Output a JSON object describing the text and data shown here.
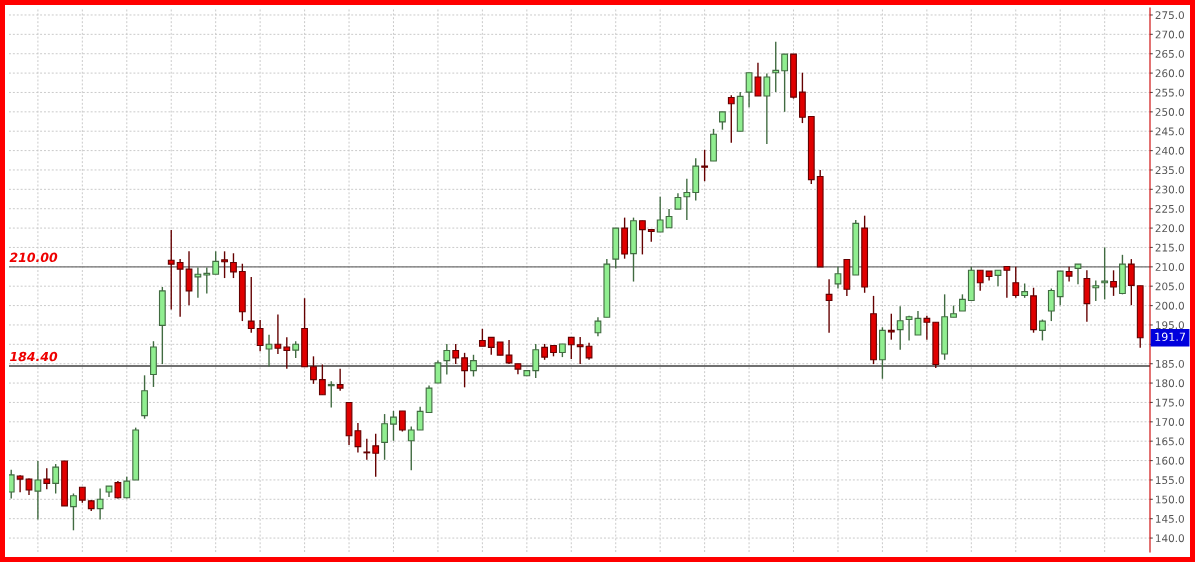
{
  "chart_data": {
    "type": "candlestick",
    "categories": [
      null,
      null,
      null,
      null,
      null,
      null,
      null,
      null,
      null,
      null,
      null,
      null,
      null,
      null,
      null,
      null,
      null,
      null,
      null,
      null,
      null,
      null,
      null,
      null,
      null,
      null,
      null,
      null,
      null,
      null,
      null,
      null,
      null,
      null,
      null,
      null,
      null,
      null,
      null,
      null,
      null,
      null,
      null,
      null,
      null,
      null,
      null,
      null,
      null,
      null,
      null,
      null,
      null,
      null,
      null,
      null,
      null,
      null,
      null,
      null,
      null,
      null,
      null,
      null,
      null,
      null,
      null,
      null,
      null,
      null,
      null,
      null,
      null,
      null,
      null,
      null,
      null,
      null,
      null,
      null,
      null,
      null,
      null,
      null,
      null,
      null,
      null,
      null,
      null,
      null,
      null,
      null,
      null,
      null,
      null,
      null,
      null,
      null,
      null,
      null,
      null,
      null,
      null,
      null,
      null,
      null,
      null,
      null,
      null,
      null,
      null,
      null,
      null,
      null,
      null,
      null,
      null,
      null,
      null,
      null,
      null,
      null,
      null,
      null,
      null,
      null,
      null,
      null
    ],
    "ohlc": [
      [
        151.9,
        157.6,
        150.2,
        156.3
      ],
      [
        156.0,
        156.2,
        151.8,
        155.2
      ],
      [
        155.2,
        155.4,
        151.1,
        152.4
      ],
      [
        152.1,
        159.9,
        144.8,
        155.0
      ],
      [
        155.2,
        158.0,
        152.6,
        154.1
      ],
      [
        154.1,
        159.1,
        151.5,
        158.3
      ],
      [
        159.9,
        159.9,
        148.3,
        148.3
      ],
      [
        148.1,
        151.5,
        142.0,
        150.9
      ],
      [
        153.1,
        153.2,
        149.1,
        149.8
      ],
      [
        149.6,
        149.8,
        147.0,
        147.6
      ],
      [
        147.6,
        152.8,
        144.8,
        150.0
      ],
      [
        151.9,
        153.4,
        150.6,
        153.4
      ],
      [
        154.3,
        154.7,
        150.2,
        150.4
      ],
      [
        150.4,
        155.8,
        150.2,
        154.7
      ],
      [
        155.0,
        168.5,
        155.0,
        167.9
      ],
      [
        171.6,
        182.0,
        170.8,
        178.0
      ],
      [
        182.2,
        190.8,
        179.0,
        189.3
      ],
      [
        194.9,
        204.8,
        184.9,
        203.8
      ],
      [
        211.7,
        219.5,
        199.0,
        210.7
      ],
      [
        211.1,
        212.0,
        197.1,
        209.4
      ],
      [
        209.4,
        214.0,
        200.1,
        203.8
      ],
      [
        207.4,
        209.8,
        202.0,
        208.1
      ],
      [
        207.9,
        209.8,
        203.1,
        208.3
      ],
      [
        208.1,
        214.0,
        208.1,
        211.4
      ],
      [
        211.8,
        214.0,
        207.1,
        211.3
      ],
      [
        211.1,
        213.5,
        207.1,
        208.7
      ],
      [
        208.8,
        210.8,
        196.0,
        198.4
      ],
      [
        196.0,
        207.4,
        193.0,
        194.1
      ],
      [
        194.1,
        196.3,
        188.2,
        189.7
      ],
      [
        188.8,
        192.5,
        184.3,
        190.0
      ],
      [
        190.0,
        197.7,
        187.5,
        189.0
      ],
      [
        189.3,
        191.8,
        183.7,
        188.4
      ],
      [
        188.5,
        190.8,
        186.5,
        190.0
      ],
      [
        194.1,
        201.9,
        184.2,
        184.2
      ],
      [
        184.2,
        186.9,
        179.8,
        180.9
      ],
      [
        180.9,
        184.8,
        177.0,
        177.0
      ],
      [
        179.3,
        180.5,
        173.7,
        179.6
      ],
      [
        179.6,
        183.7,
        178.0,
        178.7
      ],
      [
        175.0,
        175.0,
        164.0,
        166.4
      ],
      [
        167.7,
        169.7,
        162.1,
        163.6
      ],
      [
        162.2,
        165.6,
        160.2,
        162.0
      ],
      [
        163.8,
        166.9,
        155.8,
        161.9
      ],
      [
        164.7,
        172.0,
        160.2,
        169.5
      ],
      [
        169.4,
        172.8,
        165.1,
        171.2
      ],
      [
        172.8,
        172.8,
        167.5,
        167.9
      ],
      [
        165.1,
        168.8,
        157.5,
        167.9
      ],
      [
        167.9,
        173.9,
        167.9,
        172.7
      ],
      [
        172.4,
        179.4,
        172.4,
        178.7
      ],
      [
        180.0,
        185.8,
        180.0,
        185.2
      ],
      [
        185.8,
        190.1,
        182.2,
        188.4
      ],
      [
        188.4,
        190.1,
        184.9,
        186.5
      ],
      [
        186.5,
        187.8,
        178.9,
        183.2
      ],
      [
        183.2,
        187.3,
        181.7,
        185.8
      ],
      [
        191.0,
        194.0,
        189.5,
        189.5
      ],
      [
        191.8,
        191.8,
        187.3,
        189.2
      ],
      [
        190.6,
        190.6,
        187.2,
        187.2
      ],
      [
        187.2,
        191.1,
        184.9,
        185.2
      ],
      [
        185.0,
        185.0,
        182.3,
        183.6
      ],
      [
        181.9,
        183.2,
        181.9,
        183.2
      ],
      [
        183.2,
        190.1,
        181.3,
        188.6
      ],
      [
        189.2,
        190.1,
        186.0,
        186.7
      ],
      [
        189.7,
        189.7,
        186.9,
        187.9
      ],
      [
        187.9,
        190.1,
        186.7,
        190.1
      ],
      [
        191.8,
        191.8,
        186.2,
        189.9
      ],
      [
        189.9,
        191.9,
        184.9,
        189.4
      ],
      [
        189.5,
        190.4,
        186.0,
        186.5
      ],
      [
        193.0,
        197.0,
        192.1,
        196.0
      ],
      [
        197.0,
        212.0,
        197.0,
        210.7
      ],
      [
        212.0,
        220.0,
        209.6,
        220.0
      ],
      [
        220.0,
        222.7,
        212.1,
        213.3
      ],
      [
        213.4,
        222.7,
        206.2,
        221.9
      ],
      [
        221.9,
        221.9,
        213.2,
        219.6
      ],
      [
        219.6,
        219.6,
        216.5,
        219.1
      ],
      [
        219.0,
        228.1,
        219.0,
        222.1
      ],
      [
        220.1,
        224.9,
        220.1,
        223.0
      ],
      [
        224.9,
        229.0,
        224.9,
        227.9
      ],
      [
        228.1,
        232.7,
        222.1,
        229.2
      ],
      [
        229.2,
        238.0,
        227.1,
        236.0
      ],
      [
        236.0,
        240.2,
        232.1,
        235.7
      ],
      [
        237.3,
        245.6,
        237.3,
        244.2
      ],
      [
        247.4,
        250.0,
        245.4,
        250.0
      ],
      [
        253.7,
        254.3,
        242.0,
        252.1
      ],
      [
        245.0,
        255.1,
        245.0,
        254.0
      ],
      [
        255.1,
        260.1,
        251.2,
        260.1
      ],
      [
        259.0,
        262.7,
        254.1,
        254.1
      ],
      [
        254.1,
        259.9,
        241.7,
        259.0
      ],
      [
        260.1,
        268.1,
        255.1,
        260.7
      ],
      [
        260.6,
        264.9,
        250.0,
        264.9
      ],
      [
        264.9,
        264.9,
        253.4,
        253.8
      ],
      [
        255.1,
        260.1,
        247.1,
        248.6
      ],
      [
        248.8,
        248.8,
        231.4,
        232.5
      ],
      [
        233.3,
        235.0,
        210.0,
        210.0
      ],
      [
        202.9,
        206.8,
        193.0,
        201.3
      ],
      [
        205.6,
        210.0,
        204.4,
        208.2
      ],
      [
        211.9,
        211.9,
        202.5,
        204.2
      ],
      [
        207.9,
        222.1,
        207.9,
        221.2
      ],
      [
        220.0,
        223.2,
        203.3,
        204.8
      ],
      [
        197.9,
        202.5,
        184.9,
        186.0
      ],
      [
        186.0,
        194.4,
        181.1,
        193.6
      ],
      [
        193.6,
        197.9,
        191.2,
        193.2
      ],
      [
        193.8,
        199.8,
        188.6,
        196.1
      ],
      [
        196.4,
        197.4,
        191.0,
        197.1
      ],
      [
        192.4,
        198.6,
        192.4,
        196.7
      ],
      [
        196.7,
        197.4,
        191.2,
        195.7
      ],
      [
        195.7,
        195.7,
        183.9,
        184.8
      ],
      [
        187.5,
        202.9,
        186.0,
        197.1
      ],
      [
        197.0,
        200.0,
        197.0,
        197.9
      ],
      [
        198.6,
        202.9,
        198.6,
        201.6
      ],
      [
        201.3,
        210.0,
        201.3,
        209.1
      ],
      [
        209.1,
        209.1,
        203.8,
        205.9
      ],
      [
        208.9,
        208.9,
        206.5,
        207.5
      ],
      [
        207.8,
        209.1,
        205.0,
        209.1
      ],
      [
        210.1,
        210.1,
        202.0,
        209.1
      ],
      [
        205.9,
        210.0,
        202.0,
        202.6
      ],
      [
        202.6,
        205.7,
        202.0,
        203.6
      ],
      [
        202.5,
        204.6,
        193.0,
        193.8
      ],
      [
        193.6,
        196.4,
        191.0,
        196.0
      ],
      [
        198.6,
        204.4,
        196.0,
        203.9
      ],
      [
        202.3,
        208.9,
        200.1,
        208.9
      ],
      [
        208.8,
        210.0,
        206.2,
        207.6
      ],
      [
        209.6,
        210.7,
        205.5,
        210.7
      ],
      [
        207.0,
        209.1,
        195.8,
        200.5
      ],
      [
        204.6,
        206.5,
        201.2,
        205.1
      ],
      [
        205.9,
        215.0,
        201.6,
        206.3
      ],
      [
        206.2,
        209.1,
        202.5,
        204.8
      ],
      [
        203.1,
        213.1,
        202.9,
        210.7
      ],
      [
        210.7,
        212.0,
        200.1,
        205.2
      ],
      [
        205.1,
        205.1,
        189.1,
        191.7
      ]
    ],
    "colors": [
      "#90ee90",
      "#e00000",
      "#e00000",
      "#90ee90",
      "#e00000",
      "#90ee90",
      "#e00000",
      "#90ee90",
      "#e00000",
      "#e00000",
      "#90ee90",
      "#90ee90",
      "#e00000",
      "#90ee90",
      "#90ee90",
      "#90ee90",
      "#90ee90",
      "#90ee90",
      "#e00000",
      "#e00000",
      "#e00000",
      "#90ee90",
      "#90ee90",
      "#90ee90",
      "#e00000",
      "#e00000",
      "#e00000",
      "#e00000",
      "#e00000",
      "#90ee90",
      "#e00000",
      "#e00000",
      "#90ee90",
      "#e00000",
      "#e00000",
      "#e00000",
      "#90ee90",
      "#e00000",
      "#e00000",
      "#e00000",
      "#e00000",
      "#e00000",
      "#90ee90",
      "#90ee90",
      "#e00000",
      "#90ee90",
      "#90ee90",
      "#90ee90",
      "#90ee90",
      "#90ee90",
      "#e00000",
      "#e00000",
      "#90ee90",
      "#e00000",
      "#e00000",
      "#e00000",
      "#e00000",
      "#e00000",
      "#90ee90",
      "#90ee90",
      "#e00000",
      "#e00000",
      "#90ee90",
      "#e00000",
      "#e00000",
      "#e00000",
      "#90ee90",
      "#90ee90",
      "#90ee90",
      "#e00000",
      "#90ee90",
      "#e00000",
      "#e00000",
      "#90ee90",
      "#90ee90",
      "#90ee90",
      "#90ee90",
      "#90ee90",
      "#e00000",
      "#90ee90",
      "#90ee90",
      "#e00000",
      "#90ee90",
      "#90ee90",
      "#e00000",
      "#90ee90",
      "#90ee90",
      "#90ee90",
      "#e00000",
      "#e00000",
      "#e00000",
      "#e00000",
      "#e00000",
      "#90ee90",
      "#e00000",
      "#90ee90",
      "#e00000",
      "#e00000",
      "#90ee90",
      "#e00000",
      "#90ee90",
      "#90ee90",
      "#90ee90",
      "#e00000",
      "#e00000",
      "#90ee90",
      "#90ee90",
      "#90ee90",
      "#90ee90",
      "#e00000",
      "#e00000",
      "#90ee90",
      "#e00000",
      "#e00000",
      "#90ee90",
      "#e00000",
      "#90ee90",
      "#90ee90",
      "#90ee90",
      "#e00000",
      "#90ee90",
      "#e00000",
      "#90ee90",
      "#90ee90",
      "#e00000",
      "#90ee90",
      "#e00000",
      "#e00000"
    ],
    "ylim": [
      136.4,
      276.8
    ],
    "yticks": [
      {
        "value": 140,
        "label": "140.0"
      },
      {
        "value": 145,
        "label": "145.0"
      },
      {
        "value": 150,
        "label": "150.0"
      },
      {
        "value": 155,
        "label": "155.0"
      },
      {
        "value": 160,
        "label": "160.0"
      },
      {
        "value": 165,
        "label": "165.0"
      },
      {
        "value": 170,
        "label": "170.0"
      },
      {
        "value": 175,
        "label": "175.0"
      },
      {
        "value": 180,
        "label": "180.0"
      },
      {
        "value": 185,
        "label": "185.0"
      },
      {
        "value": 190,
        "label": null
      },
      {
        "value": 195,
        "label": "195.0"
      },
      {
        "value": 200,
        "label": "200.0"
      },
      {
        "value": 205,
        "label": "205.0"
      },
      {
        "value": 210,
        "label": "210.0"
      },
      {
        "value": 215,
        "label": "215.0"
      },
      {
        "value": 220,
        "label": "220.0"
      },
      {
        "value": 225,
        "label": "225.0"
      },
      {
        "value": 230,
        "label": "230.0"
      },
      {
        "value": 235,
        "label": "235.0"
      },
      {
        "value": 240,
        "label": "240.0"
      },
      {
        "value": 245,
        "label": "245.0"
      },
      {
        "value": 250,
        "label": "250.0"
      },
      {
        "value": 255,
        "label": "255.0"
      },
      {
        "value": 260,
        "label": "260.0"
      },
      {
        "value": 265,
        "label": "265.0"
      },
      {
        "value": 270,
        "label": "270.0"
      },
      {
        "value": 275,
        "label": "275.0"
      }
    ],
    "ref_lines": [
      {
        "axis": "y",
        "value": 210,
        "label": "210.00",
        "color": "#707070"
      },
      {
        "axis": "y",
        "value": 184.4,
        "label": "184.40",
        "color": "#404040"
      }
    ],
    "annotations": [
      {
        "text": "191.7",
        "y": 191.7
      }
    ],
    "tick_labels": "y",
    "grid": true
  }
}
